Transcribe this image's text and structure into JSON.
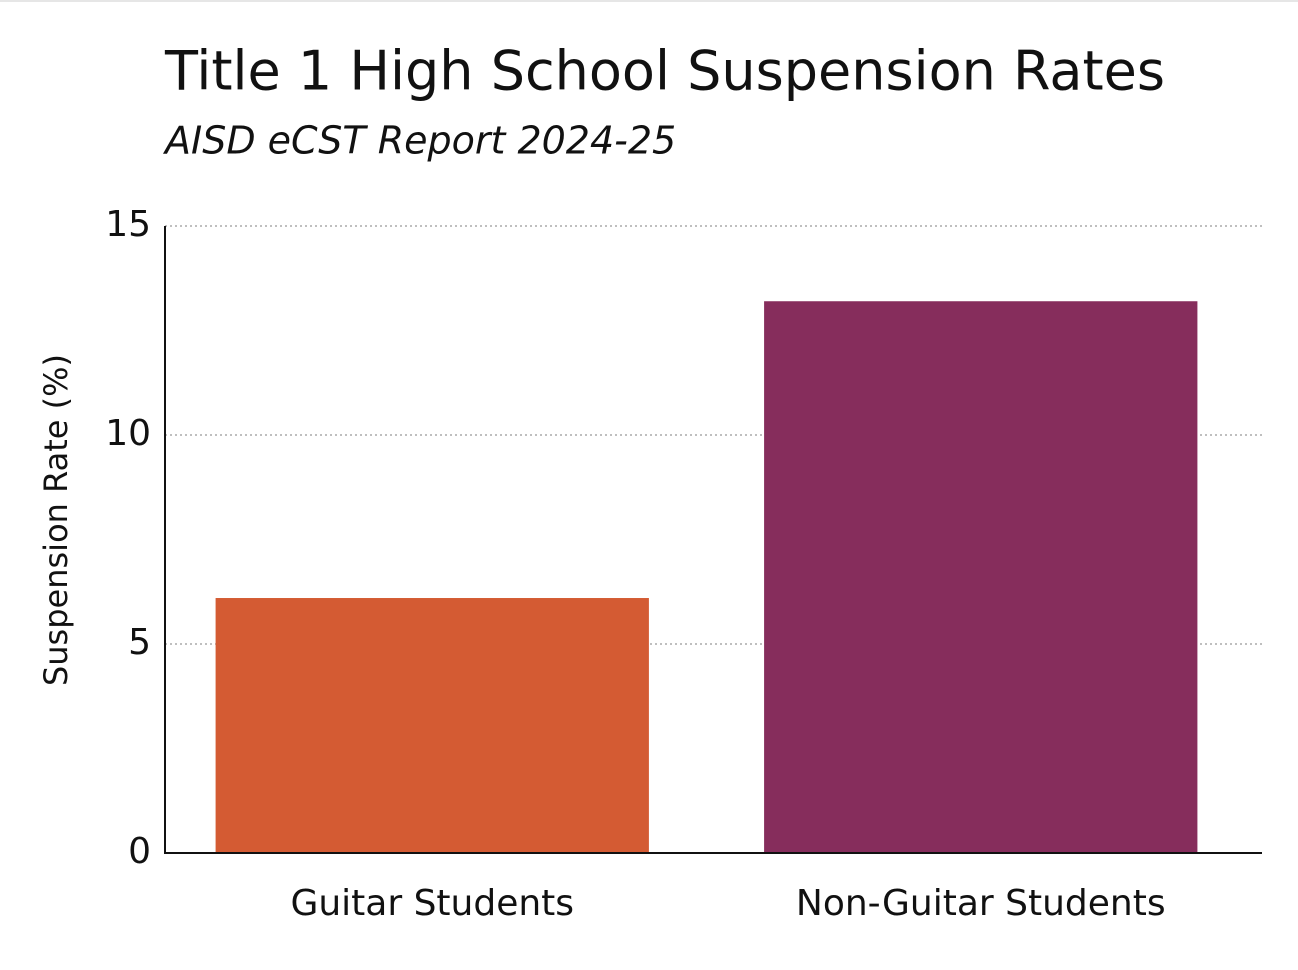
{
  "chart_data": {
    "type": "bar",
    "title": "Title 1 High School Suspension Rates",
    "subtitle": "AISD eCST Report 2024-25",
    "y_label": "Suspension Rate (%)",
    "categories": [
      "Guitar Students",
      "Non-Guitar Students"
    ],
    "values": [
      6.1,
      13.2
    ],
    "colors": [
      "#d45b33",
      "#862d5c"
    ],
    "ylim": [
      0,
      15
    ],
    "yticks": [
      0,
      5,
      10,
      15
    ],
    "grid": true
  }
}
